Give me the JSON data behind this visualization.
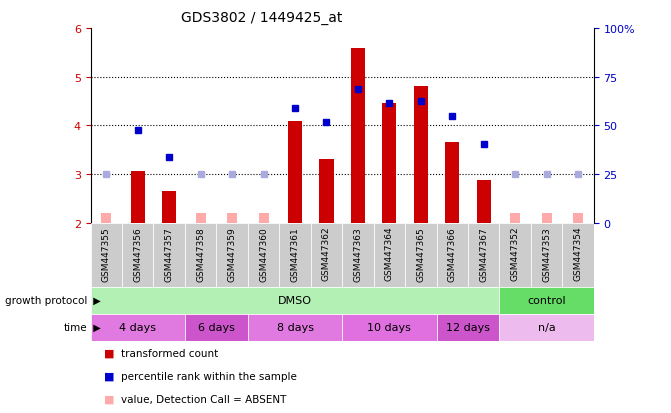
{
  "title": "GDS3802 / 1449425_at",
  "samples": [
    "GSM447355",
    "GSM447356",
    "GSM447357",
    "GSM447358",
    "GSM447359",
    "GSM447360",
    "GSM447361",
    "GSM447362",
    "GSM447363",
    "GSM447364",
    "GSM447365",
    "GSM447366",
    "GSM447367",
    "GSM447352",
    "GSM447353",
    "GSM447354"
  ],
  "red_bars": [
    2.2,
    3.05,
    2.65,
    2.2,
    2.2,
    2.2,
    4.08,
    3.3,
    5.58,
    4.45,
    4.8,
    3.65,
    2.87,
    2.2,
    2.35,
    2.2
  ],
  "blue_dots": [
    null,
    3.9,
    3.35,
    null,
    null,
    null,
    4.35,
    4.07,
    4.75,
    4.45,
    4.5,
    4.2,
    3.62,
    null,
    null,
    null
  ],
  "pink_bars": [
    2.2,
    2.2,
    2.2,
    2.2,
    2.2,
    2.2,
    2.2,
    2.2,
    2.2,
    2.2,
    2.2,
    2.2,
    2.2,
    2.2,
    2.2,
    2.2
  ],
  "light_blue_dots": [
    3.0,
    null,
    null,
    3.0,
    3.0,
    3.0,
    null,
    null,
    null,
    null,
    null,
    null,
    null,
    3.0,
    3.0,
    3.0
  ],
  "red_bar_absent": [
    true,
    false,
    false,
    true,
    true,
    true,
    false,
    false,
    false,
    false,
    false,
    false,
    false,
    true,
    true,
    true
  ],
  "ylim": [
    2.0,
    6.0
  ],
  "y2lim": [
    0,
    100
  ],
  "yticks": [
    2,
    3,
    4,
    5,
    6
  ],
  "y2ticks": [
    0,
    25,
    50,
    75,
    100
  ],
  "growth_protocol_groups": [
    {
      "label": "DMSO",
      "start": 0,
      "end": 13,
      "color": "#b3f0b3"
    },
    {
      "label": "control",
      "start": 13,
      "end": 16,
      "color": "#66dd66"
    }
  ],
  "time_groups": [
    {
      "label": "4 days",
      "start": 0,
      "end": 3,
      "color": "#e07ae0"
    },
    {
      "label": "6 days",
      "start": 3,
      "end": 5,
      "color": "#cc55cc"
    },
    {
      "label": "8 days",
      "start": 5,
      "end": 8,
      "color": "#e07ae0"
    },
    {
      "label": "10 days",
      "start": 8,
      "end": 11,
      "color": "#e070e0"
    },
    {
      "label": "12 days",
      "start": 11,
      "end": 13,
      "color": "#cc55cc"
    },
    {
      "label": "n/a",
      "start": 13,
      "end": 16,
      "color": "#eebbee"
    }
  ],
  "red_color": "#cc0000",
  "pink_color": "#ffaaaa",
  "blue_color": "#0000cc",
  "light_blue_color": "#aaaadd",
  "bg_color": "#ffffff",
  "axis_color_left": "#cc0000",
  "axis_color_right": "#0000cc",
  "label_color_gp": "#555555",
  "sample_bg_color": "#cccccc"
}
